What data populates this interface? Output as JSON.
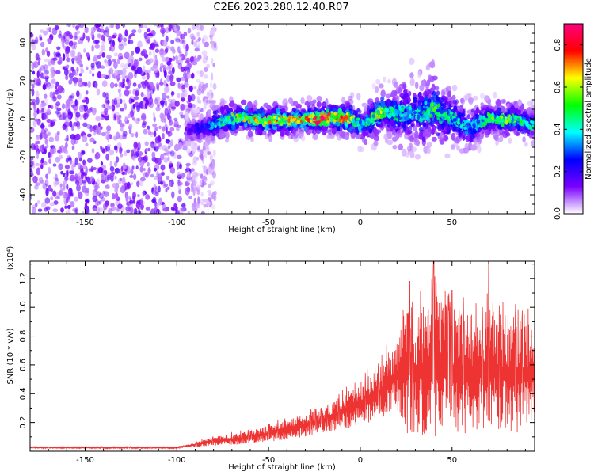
{
  "title": "C2E6.2023.280.12.40.R07",
  "chart_data": [
    {
      "type": "heatmap",
      "xlabel": "Height of straight line (km)",
      "ylabel": "Frequency (Hz)",
      "xlim": [
        -180,
        95
      ],
      "ylim": [
        -50,
        50
      ],
      "xticks": [
        -150,
        -100,
        -50,
        0,
        50
      ],
      "yticks": [
        -40,
        -20,
        0,
        20,
        40
      ],
      "grid": false,
      "colorbar": {
        "label": "Normalized spectral amplitude",
        "range": [
          0.0,
          0.9
        ],
        "ticks": [
          "0.0",
          "0.2",
          "0.4",
          "0.6",
          "0.8"
        ],
        "colors": [
          "#ffffff",
          "#7a00ff",
          "#0000ff",
          "#00ffff",
          "#00ff00",
          "#ffff00",
          "#ff0000",
          "#ff0080"
        ]
      },
      "noise_region": {
        "x_from": -180,
        "x_to": -83,
        "freq_from": -50,
        "freq_to": 50,
        "typical_amplitude": 0.12
      },
      "ridge": [
        {
          "x": -95,
          "freq": -6,
          "width": 6,
          "amp": 0.15
        },
        {
          "x": -85,
          "freq": -5,
          "width": 6,
          "amp": 0.25
        },
        {
          "x": -80,
          "freq": -3,
          "width": 6,
          "amp": 0.35
        },
        {
          "x": -75,
          "freq": -1,
          "width": 6,
          "amp": 0.45
        },
        {
          "x": -70,
          "freq": 0,
          "width": 6,
          "amp": 0.5
        },
        {
          "x": -65,
          "freq": 1,
          "width": 5,
          "amp": 0.55
        },
        {
          "x": -60,
          "freq": 0,
          "width": 5,
          "amp": 0.62
        },
        {
          "x": -55,
          "freq": -1,
          "width": 5,
          "amp": 0.62
        },
        {
          "x": -50,
          "freq": -1,
          "width": 5,
          "amp": 0.6
        },
        {
          "x": -45,
          "freq": 0,
          "width": 5,
          "amp": 0.62
        },
        {
          "x": -40,
          "freq": -1,
          "width": 5,
          "amp": 0.58
        },
        {
          "x": -35,
          "freq": 0,
          "width": 5,
          "amp": 0.62
        },
        {
          "x": -30,
          "freq": 0,
          "width": 5,
          "amp": 0.6
        },
        {
          "x": -25,
          "freq": 0,
          "width": 5,
          "amp": 0.72
        },
        {
          "x": -20,
          "freq": 0,
          "width": 5,
          "amp": 0.8
        },
        {
          "x": -15,
          "freq": 1,
          "width": 5,
          "amp": 0.65
        },
        {
          "x": -10,
          "freq": 0,
          "width": 5,
          "amp": 0.75
        },
        {
          "x": -5,
          "freq": 0,
          "width": 6,
          "amp": 0.55
        },
        {
          "x": 0,
          "freq": -3,
          "width": 7,
          "amp": 0.35
        },
        {
          "x": 5,
          "freq": -1,
          "width": 7,
          "amp": 0.45
        },
        {
          "x": 10,
          "freq": 3,
          "width": 8,
          "amp": 0.55
        },
        {
          "x": 15,
          "freq": 4,
          "width": 8,
          "amp": 0.4
        },
        {
          "x": 20,
          "freq": 3,
          "width": 10,
          "amp": 0.4
        },
        {
          "x": 25,
          "freq": 3,
          "width": 14,
          "amp": 0.35
        },
        {
          "x": 30,
          "freq": 2,
          "width": 12,
          "amp": 0.35
        },
        {
          "x": 35,
          "freq": 3,
          "width": 12,
          "amp": 0.4
        },
        {
          "x": 40,
          "freq": 5,
          "width": 14,
          "amp": 0.45
        },
        {
          "x": 45,
          "freq": 2,
          "width": 10,
          "amp": 0.4
        },
        {
          "x": 50,
          "freq": 1,
          "width": 9,
          "amp": 0.4
        },
        {
          "x": 55,
          "freq": -3,
          "width": 9,
          "amp": 0.35
        },
        {
          "x": 60,
          "freq": -5,
          "width": 9,
          "amp": 0.3
        },
        {
          "x": 65,
          "freq": -2,
          "width": 7,
          "amp": 0.4
        },
        {
          "x": 70,
          "freq": 0,
          "width": 6,
          "amp": 0.45
        },
        {
          "x": 75,
          "freq": 0,
          "width": 6,
          "amp": 0.45
        },
        {
          "x": 80,
          "freq": -1,
          "width": 6,
          "amp": 0.5
        },
        {
          "x": 85,
          "freq": 0,
          "width": 6,
          "amp": 0.45
        },
        {
          "x": 90,
          "freq": -3,
          "width": 6,
          "amp": 0.4
        }
      ]
    },
    {
      "type": "area",
      "xlabel": "Height of straight line (km)",
      "ylabel": "SNR (10 * v/v)",
      "y_scale_note": "(x10⁴)",
      "xlim": [
        -180,
        95
      ],
      "ylim": [
        0.0,
        1.32
      ],
      "xticks": [
        -150,
        -100,
        -50,
        0,
        50
      ],
      "yticks": [
        "0.2",
        "0.4",
        "0.6",
        "0.8",
        "1.0",
        "1.2"
      ],
      "grid": false,
      "color": "#ee3333",
      "envelope": {
        "x": [
          -180,
          -100,
          -90,
          -80,
          -60,
          -40,
          -20,
          -10,
          0,
          10,
          20,
          25,
          30,
          40,
          50,
          60,
          70,
          80,
          95
        ],
        "lower": [
          0.02,
          0.02,
          0.03,
          0.04,
          0.05,
          0.08,
          0.12,
          0.15,
          0.18,
          0.22,
          0.28,
          0.12,
          0.08,
          0.1,
          0.1,
          0.12,
          0.15,
          0.12,
          0.15
        ],
        "upper": [
          0.03,
          0.03,
          0.06,
          0.1,
          0.14,
          0.22,
          0.3,
          0.4,
          0.48,
          0.58,
          0.78,
          1.1,
          1.0,
          1.1,
          1.0,
          0.95,
          1.0,
          0.95,
          0.9
        ],
        "peaks": [
          {
            "x": 40,
            "y": 1.32
          },
          {
            "x": 70,
            "y": 1.32
          },
          {
            "x": 27,
            "y": 1.18
          },
          {
            "x": 50,
            "y": 1.12
          }
        ]
      }
    }
  ]
}
